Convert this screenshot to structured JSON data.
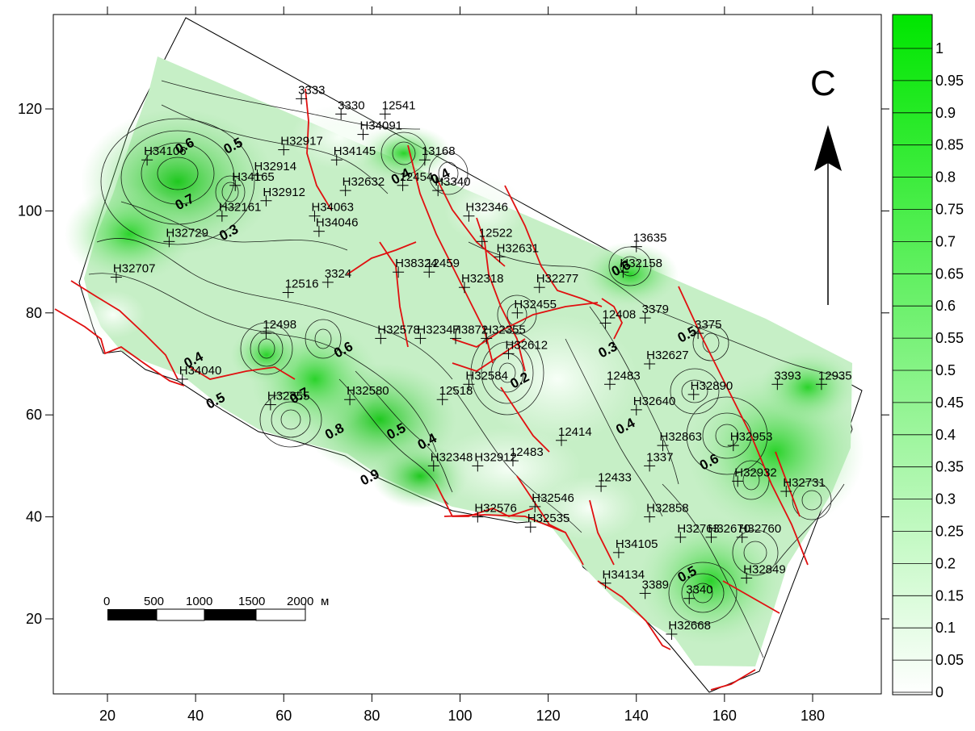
{
  "map": {
    "north_label": "С",
    "x_ticks": [
      "20",
      "40",
      "60",
      "80",
      "100",
      "120",
      "140",
      "160",
      "180"
    ],
    "y_ticks": [
      "20",
      "40",
      "60",
      "80",
      "100",
      "120"
    ],
    "scale_bar": {
      "labels": [
        "0",
        "500",
        "1000",
        "1500",
        "2000"
      ],
      "unit": "м"
    },
    "legend": {
      "labels": [
        "1",
        "0.95",
        "0.9",
        "0.85",
        "0.8",
        "0.75",
        "0.7",
        "0.65",
        "0.6",
        "0.55",
        "0.5",
        "0.45",
        "0.4",
        "0.35",
        "0.3",
        "0.25",
        "0.2",
        "0.15",
        "0.1",
        "0.05",
        "0"
      ],
      "color_high": "#00e600",
      "color_low": "#ffffff"
    },
    "wells": [
      {
        "label": "3333",
        "x": 64,
        "y": 122
      },
      {
        "label": "3330",
        "x": 73,
        "y": 119
      },
      {
        "label": "12541",
        "x": 83,
        "y": 119
      },
      {
        "label": "Н34091",
        "x": 78,
        "y": 115
      },
      {
        "label": "Н32917",
        "x": 60,
        "y": 112
      },
      {
        "label": "Н34106",
        "x": 29,
        "y": 110
      },
      {
        "label": "Н34145",
        "x": 72,
        "y": 110
      },
      {
        "label": "13168",
        "x": 92,
        "y": 110
      },
      {
        "label": "Н32914",
        "x": 54,
        "y": 107
      },
      {
        "label": "Н34165",
        "x": 49,
        "y": 105
      },
      {
        "label": "12454",
        "x": 87,
        "y": 105
      },
      {
        "label": "Н32632",
        "x": 74,
        "y": 104
      },
      {
        "label": "Н32912",
        "x": 56,
        "y": 102
      },
      {
        "label": "Н3340",
        "x": 95,
        "y": 104
      },
      {
        "label": "Н32161",
        "x": 46,
        "y": 99
      },
      {
        "label": "Н34063",
        "x": 67,
        "y": 99
      },
      {
        "label": "Н32346",
        "x": 102,
        "y": 99
      },
      {
        "label": "Н34046",
        "x": 68,
        "y": 96
      },
      {
        "label": "Н32729",
        "x": 34,
        "y": 94
      },
      {
        "label": "12522",
        "x": 105,
        "y": 94
      },
      {
        "label": "13635",
        "x": 140,
        "y": 93
      },
      {
        "label": "Н32707",
        "x": 22,
        "y": 87
      },
      {
        "label": "Н32631",
        "x": 109,
        "y": 91
      },
      {
        "label": "Н38324",
        "x": 86,
        "y": 88
      },
      {
        "label": "12459",
        "x": 93,
        "y": 88
      },
      {
        "label": "Н32158",
        "x": 137,
        "y": 88
      },
      {
        "label": "12516",
        "x": 61,
        "y": 84
      },
      {
        "label": "3324",
        "x": 70,
        "y": 86
      },
      {
        "label": "Н32318",
        "x": 101,
        "y": 85
      },
      {
        "label": "Н32277",
        "x": 118,
        "y": 85
      },
      {
        "label": "3379",
        "x": 142,
        "y": 79
      },
      {
        "label": "Н32455",
        "x": 113,
        "y": 80
      },
      {
        "label": "12408",
        "x": 133,
        "y": 78
      },
      {
        "label": "12498",
        "x": 56,
        "y": 76
      },
      {
        "label": "Н32578",
        "x": 82,
        "y": 75
      },
      {
        "label": "Н32347",
        "x": 91,
        "y": 75
      },
      {
        "label": "Н3872",
        "x": 99,
        "y": 75
      },
      {
        "label": "Н32355",
        "x": 106,
        "y": 75
      },
      {
        "label": "3375",
        "x": 154,
        "y": 76
      },
      {
        "label": "Н32612",
        "x": 111,
        "y": 72
      },
      {
        "label": "Н32627",
        "x": 143,
        "y": 70
      },
      {
        "label": "Н34040",
        "x": 37,
        "y": 67
      },
      {
        "label": "12483",
        "x": 134,
        "y": 66
      },
      {
        "label": "Н32580",
        "x": 75,
        "y": 63
      },
      {
        "label": "12518",
        "x": 96,
        "y": 63
      },
      {
        "label": "Н32584",
        "x": 102,
        "y": 66
      },
      {
        "label": "Н32890",
        "x": 153,
        "y": 64
      },
      {
        "label": "3393",
        "x": 172,
        "y": 66
      },
      {
        "label": "12935",
        "x": 182,
        "y": 66
      },
      {
        "label": "Н32355",
        "x": 57,
        "y": 62
      },
      {
        "label": "Н32640",
        "x": 140,
        "y": 61
      },
      {
        "label": "12414",
        "x": 123,
        "y": 55
      },
      {
        "label": "Н32863",
        "x": 146,
        "y": 54
      },
      {
        "label": "Н32953",
        "x": 162,
        "y": 54
      },
      {
        "label": "Н32348",
        "x": 94,
        "y": 50
      },
      {
        "label": "Н32912",
        "x": 104,
        "y": 50
      },
      {
        "label": "12483",
        "x": 112,
        "y": 51
      },
      {
        "label": "1337",
        "x": 143,
        "y": 50
      },
      {
        "label": "12433",
        "x": 132,
        "y": 46
      },
      {
        "label": "Н32932",
        "x": 163,
        "y": 47
      },
      {
        "label": "Н32731",
        "x": 174,
        "y": 45
      },
      {
        "label": "Н32546",
        "x": 117,
        "y": 42
      },
      {
        "label": "Н32576",
        "x": 104,
        "y": 40
      },
      {
        "label": "Н32858",
        "x": 143,
        "y": 40
      },
      {
        "label": "Н32763",
        "x": 150,
        "y": 36
      },
      {
        "label": "Н32670",
        "x": 157,
        "y": 36
      },
      {
        "label": "Н32535",
        "x": 116,
        "y": 38
      },
      {
        "label": "Н32760",
        "x": 164,
        "y": 36
      },
      {
        "label": "Н34105",
        "x": 136,
        "y": 33
      },
      {
        "label": "Н34134",
        "x": 133,
        "y": 27
      },
      {
        "label": "3389",
        "x": 142,
        "y": 25
      },
      {
        "label": "3340",
        "x": 152,
        "y": 24
      },
      {
        "label": "Н32849",
        "x": 165,
        "y": 28
      },
      {
        "label": "Н32668",
        "x": 148,
        "y": 17
      }
    ],
    "contour_labels": [
      {
        "label": "0.6",
        "x": 38,
        "y": 112
      },
      {
        "label": "0.5",
        "x": 49,
        "y": 112
      },
      {
        "label": "0.4",
        "x": 87,
        "y": 106
      },
      {
        "label": "0.4",
        "x": 96,
        "y": 106
      },
      {
        "label": "0.7",
        "x": 38,
        "y": 101
      },
      {
        "label": "0.3",
        "x": 48,
        "y": 95
      },
      {
        "label": "0.6",
        "x": 137,
        "y": 88
      },
      {
        "label": "0.3",
        "x": 134,
        "y": 72
      },
      {
        "label": "0.5",
        "x": 152,
        "y": 75
      },
      {
        "label": "0.4",
        "x": 40,
        "y": 70
      },
      {
        "label": "0.6",
        "x": 74,
        "y": 72
      },
      {
        "label": "0.2",
        "x": 114,
        "y": 66
      },
      {
        "label": "0.7",
        "x": 64,
        "y": 63
      },
      {
        "label": "0.5",
        "x": 45,
        "y": 62
      },
      {
        "label": "0.8",
        "x": 72,
        "y": 56
      },
      {
        "label": "0.5",
        "x": 86,
        "y": 56
      },
      {
        "label": "0.4",
        "x": 93,
        "y": 54
      },
      {
        "label": "0.4",
        "x": 138,
        "y": 57
      },
      {
        "label": "0.9",
        "x": 80,
        "y": 47
      },
      {
        "label": "0.6",
        "x": 157,
        "y": 50
      },
      {
        "label": "0.5",
        "x": 152,
        "y": 28
      }
    ]
  }
}
